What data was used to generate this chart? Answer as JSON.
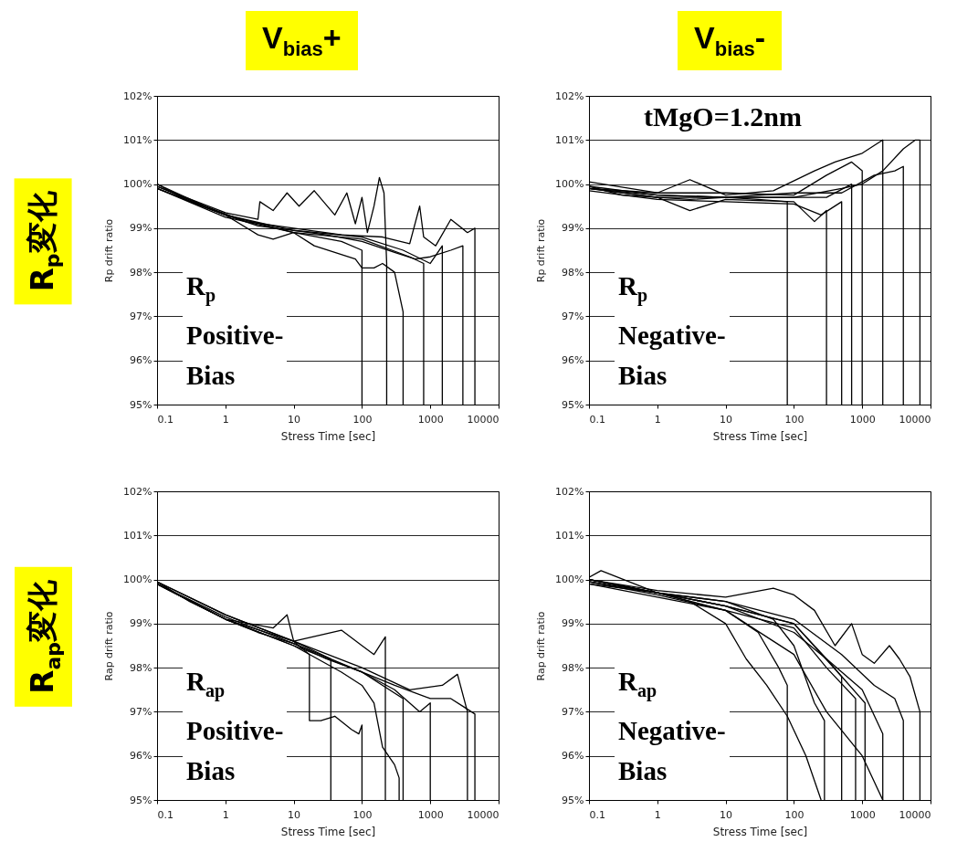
{
  "chart_data": [
    {
      "type": "line",
      "title": "V$_{bias}$+",
      "subtitle": "R$_{p}$変化",
      "xlabel": "Stress Time [sec]",
      "ylabel": "Rp drift ratio",
      "annotations": [
        "R$_{p}$",
        "Positive-",
        "Bias"
      ],
      "log": "x",
      "xlim": [
        0.1,
        10000
      ],
      "xticks": [
        0.1,
        1,
        10,
        100,
        1000,
        10000
      ],
      "ylim": [
        95,
        102
      ],
      "yticks": [
        {
          "value": 95,
          "label": "95%"
        },
        {
          "value": 96,
          "label": "96%"
        },
        {
          "value": 97,
          "label": "97%"
        },
        {
          "value": 98,
          "label": "98%"
        },
        {
          "value": 99,
          "label": "99%"
        },
        {
          "value": 100,
          "label": "100%"
        },
        {
          "value": 101,
          "label": "101%"
        },
        {
          "value": 102,
          "label": "102%"
        }
      ],
      "grid": "y",
      "line_style": "solid",
      "series": [
        {
          "color": "#000000",
          "x": [
            0.1,
            0.3,
            1,
            3,
            10,
            30,
            100,
            300,
            600,
            1000,
            2000,
            3000,
            3000
          ],
          "values": [
            100,
            99.6,
            99.3,
            99.05,
            98.95,
            98.85,
            98.7,
            98.45,
            98.3,
            98.35,
            98.5,
            98.6,
            95
          ]
        },
        {
          "color": "#000000",
          "x": [
            0.1,
            1,
            3,
            3.2,
            5,
            8,
            12,
            20,
            40,
            60,
            80,
            100,
            120,
            150,
            180,
            210,
            230,
            230
          ],
          "values": [
            99.95,
            99.35,
            99.2,
            99.6,
            99.4,
            99.8,
            99.5,
            99.85,
            99.3,
            99.8,
            99.1,
            99.7,
            98.9,
            99.5,
            100.15,
            99.8,
            98.2,
            95
          ]
        },
        {
          "color": "#000000",
          "x": [
            0.1,
            1,
            3,
            5,
            10,
            20,
            40,
            80,
            100,
            150,
            200,
            300,
            400,
            400
          ],
          "values": [
            99.9,
            99.3,
            98.85,
            98.75,
            98.9,
            98.6,
            98.45,
            98.3,
            98.1,
            98.1,
            98.2,
            98,
            97.1,
            95
          ]
        },
        {
          "color": "#000000",
          "x": [
            0.1,
            0.5,
            2,
            10,
            50,
            200,
            500,
            700,
            800,
            1200,
            2000,
            3500,
            4500,
            4500
          ],
          "values": [
            100,
            99.5,
            99.15,
            99,
            98.85,
            98.8,
            98.65,
            99.5,
            98.8,
            98.6,
            99.2,
            98.9,
            99,
            95
          ]
        },
        {
          "color": "#000000",
          "x": [
            0.1,
            1,
            10,
            50,
            100,
            100
          ],
          "values": [
            99.9,
            99.25,
            98.9,
            98.7,
            98.5,
            95
          ]
        },
        {
          "color": "#000000",
          "x": [
            0.1,
            1,
            10,
            100,
            400,
            1000,
            1500,
            1500
          ],
          "values": [
            99.95,
            99.3,
            98.95,
            98.8,
            98.5,
            98.2,
            98.6,
            95
          ]
        },
        {
          "color": "#000000",
          "x": [
            0.1,
            1,
            10,
            100,
            500,
            800,
            800
          ],
          "values": [
            99.9,
            99.3,
            98.9,
            98.75,
            98.35,
            98.2,
            95
          ]
        }
      ]
    },
    {
      "type": "line",
      "title": "V$_{bias}$-",
      "subtitle": "tMgO=1.2nm",
      "xlabel": "Stress Time [sec]",
      "ylabel": "Rp drift ratio",
      "annotations": [
        "R$_{p}$",
        "Negative-",
        "Bias"
      ],
      "log": "x",
      "xlim": [
        0.1,
        10000
      ],
      "xticks": [
        0.1,
        1,
        10,
        100,
        1000,
        10000
      ],
      "ylim": [
        95,
        102
      ],
      "yticks": [
        {
          "value": 95,
          "label": "95%"
        },
        {
          "value": 96,
          "label": "96%"
        },
        {
          "value": 97,
          "label": "97%"
        },
        {
          "value": 98,
          "label": "98%"
        },
        {
          "value": 99,
          "label": "99%"
        },
        {
          "value": 100,
          "label": "100%"
        },
        {
          "value": 101,
          "label": "101%"
        },
        {
          "value": 102,
          "label": "102%"
        }
      ],
      "grid": "y",
      "line_style": "solid",
      "series": [
        {
          "color": "#000000",
          "x": [
            0.1,
            0.3,
            1,
            3,
            10,
            30,
            80,
            80
          ],
          "values": [
            99.95,
            99.75,
            99.7,
            99.65,
            99.7,
            99.65,
            99.6,
            95
          ]
        },
        {
          "color": "#000000",
          "x": [
            0.1,
            1,
            3,
            10,
            50,
            200,
            400,
            1000,
            2000,
            2000
          ],
          "values": [
            100.05,
            99.8,
            100.1,
            99.75,
            99.85,
            100.3,
            100.5,
            100.7,
            101,
            95
          ]
        },
        {
          "color": "#000000",
          "x": [
            0.1,
            1,
            3,
            10,
            100,
            200,
            300,
            300
          ],
          "values": [
            99.9,
            99.7,
            99.4,
            99.65,
            99.6,
            99.15,
            99.4,
            95
          ]
        },
        {
          "color": "#000000",
          "x": [
            0.1,
            1,
            10,
            100,
            500,
            1000,
            2000,
            4000,
            6000,
            7000,
            7000
          ],
          "values": [
            99.9,
            99.75,
            99.7,
            99.7,
            99.9,
            100,
            100.3,
            100.8,
            101,
            101,
            95
          ]
        },
        {
          "color": "#000000",
          "x": [
            0.1,
            1,
            10,
            100,
            250,
            500,
            500
          ],
          "values": [
            99.85,
            99.65,
            99.6,
            99.55,
            99.3,
            99.6,
            95
          ]
        },
        {
          "color": "#000000",
          "x": [
            0.1,
            1,
            10,
            100,
            300,
            700,
            1000,
            1000
          ],
          "values": [
            99.9,
            99.8,
            99.8,
            99.75,
            100.2,
            100.5,
            100.3,
            95
          ]
        },
        {
          "color": "#000000",
          "x": [
            0.1,
            1,
            10,
            100,
            500,
            1500,
            3000,
            4000,
            4000
          ],
          "values": [
            99.9,
            99.7,
            99.7,
            99.8,
            99.8,
            100.2,
            100.3,
            100.4,
            95
          ]
        },
        {
          "color": "#000000",
          "x": [
            0.1,
            1,
            10,
            100,
            300,
            700,
            700
          ],
          "values": [
            99.95,
            99.75,
            99.7,
            99.7,
            99.7,
            100,
            95
          ]
        }
      ]
    },
    {
      "type": "line",
      "subtitle": "R$_{ap}$変化",
      "xlabel": "Stress Time [sec]",
      "ylabel": "Rap drift ratio",
      "annotations": [
        "R$_{ap}$",
        "Positive-",
        "Bias"
      ],
      "log": "x",
      "xlim": [
        0.1,
        10000
      ],
      "xticks": [
        0.1,
        1,
        10,
        100,
        1000,
        10000
      ],
      "ylim": [
        95,
        102
      ],
      "yticks": [
        {
          "value": 95,
          "label": "95%"
        },
        {
          "value": 96,
          "label": "96%"
        },
        {
          "value": 97,
          "label": "97%"
        },
        {
          "value": 98,
          "label": "98%"
        },
        {
          "value": 99,
          "label": "99%"
        },
        {
          "value": 100,
          "label": "100%"
        },
        {
          "value": 101,
          "label": "101%"
        },
        {
          "value": 102,
          "label": "102%"
        }
      ],
      "grid": "y",
      "line_style": "solid",
      "series": [
        {
          "color": "#000000",
          "x": [
            0.1,
            0.3,
            1,
            3,
            10,
            30,
            100,
            300,
            1000,
            2000,
            4500,
            4500
          ],
          "values": [
            99.95,
            99.5,
            99.1,
            98.8,
            98.55,
            98.2,
            97.9,
            97.6,
            97.3,
            97.3,
            96.95,
            95
          ]
        },
        {
          "color": "#000000",
          "x": [
            0.1,
            1,
            5,
            8,
            10,
            17,
            17,
            25,
            40,
            70,
            90,
            100,
            100
          ],
          "values": [
            99.9,
            99.1,
            98.9,
            99.2,
            98.6,
            98.3,
            96.8,
            96.8,
            96.9,
            96.6,
            96.5,
            96.7,
            95
          ]
        },
        {
          "color": "#000000",
          "x": [
            0.1,
            1,
            10,
            35,
            35
          ],
          "values": [
            99.9,
            99.1,
            98.6,
            98.2,
            95
          ]
        },
        {
          "color": "#000000",
          "x": [
            0.1,
            1,
            10,
            50,
            100,
            150,
            200,
            220,
            220
          ],
          "values": [
            99.95,
            99.2,
            98.6,
            98.85,
            98.5,
            98.3,
            98.6,
            98.7,
            95
          ]
        },
        {
          "color": "#000000",
          "x": [
            0.1,
            1,
            10,
            50,
            100,
            150,
            200,
            300,
            350,
            350
          ],
          "values": [
            99.9,
            99.1,
            98.5,
            97.9,
            97.6,
            97.2,
            96.2,
            95.8,
            95.5,
            95
          ]
        },
        {
          "color": "#000000",
          "x": [
            0.1,
            1,
            10,
            100,
            300,
            700,
            1000,
            1000
          ],
          "values": [
            99.9,
            99.15,
            98.55,
            97.9,
            97.5,
            97,
            97.2,
            95
          ]
        },
        {
          "color": "#000000",
          "x": [
            0.1,
            1,
            10,
            100,
            500,
            1500,
            2500,
            3500,
            3500
          ],
          "values": [
            99.95,
            99.2,
            98.6,
            98,
            97.5,
            97.6,
            97.85,
            97,
            95
          ]
        },
        {
          "color": "#000000",
          "x": [
            0.1,
            1,
            10,
            100,
            400,
            400
          ],
          "values": [
            99.9,
            99.1,
            98.5,
            97.9,
            97.3,
            95
          ]
        }
      ]
    },
    {
      "type": "line",
      "xlabel": "Stress Time [sec]",
      "ylabel": "Rap drift ratio",
      "annotations": [
        "R$_{ap}$",
        "Negative-",
        "Bias"
      ],
      "log": "x",
      "xlim": [
        0.1,
        10000
      ],
      "xticks": [
        0.1,
        1,
        10,
        100,
        1000,
        10000
      ],
      "ylim": [
        95,
        102
      ],
      "yticks": [
        {
          "value": 95,
          "label": "95%"
        },
        {
          "value": 96,
          "label": "96%"
        },
        {
          "value": 97,
          "label": "97%"
        },
        {
          "value": 98,
          "label": "98%"
        },
        {
          "value": 99,
          "label": "99%"
        },
        {
          "value": 100,
          "label": "100%"
        },
        {
          "value": 101,
          "label": "101%"
        },
        {
          "value": 102,
          "label": "102%"
        }
      ],
      "grid": "y",
      "line_style": "solid",
      "series": [
        {
          "color": "#000000",
          "x": [
            0.1,
            0.15,
            1,
            3,
            10,
            20,
            40,
            80,
            150,
            250
          ],
          "values": [
            100.05,
            100.2,
            99.7,
            99.5,
            99,
            98.2,
            97.6,
            96.9,
            96,
            95
          ]
        },
        {
          "color": "#000000",
          "x": [
            0.1,
            1,
            10,
            30,
            60,
            80,
            80
          ],
          "values": [
            99.9,
            99.7,
            99.3,
            98.8,
            98,
            97.6,
            95
          ]
        },
        {
          "color": "#000000",
          "x": [
            0.1,
            1,
            10,
            50,
            100,
            200,
            280,
            280
          ],
          "values": [
            100,
            99.7,
            99.5,
            99.1,
            98.5,
            97.2,
            96.8,
            95
          ]
        },
        {
          "color": "#000000",
          "x": [
            0.1,
            1,
            10,
            50,
            100,
            200,
            400,
            700,
            1000,
            1500,
            2500,
            3500,
            5000,
            7000,
            7000
          ],
          "values": [
            100,
            99.75,
            99.6,
            99.8,
            99.65,
            99.3,
            98.5,
            99,
            98.3,
            98.1,
            98.5,
            98.2,
            97.8,
            97,
            95
          ]
        },
        {
          "color": "#000000",
          "x": [
            0.1,
            1,
            10,
            100,
            300,
            500,
            500
          ],
          "values": [
            99.95,
            99.7,
            99.4,
            98.8,
            98.2,
            97.8,
            95
          ]
        },
        {
          "color": "#000000",
          "x": [
            0.1,
            1,
            10,
            100,
            300,
            800,
            800
          ],
          "values": [
            99.9,
            99.6,
            99.3,
            98.9,
            98,
            97.3,
            95
          ]
        },
        {
          "color": "#000000",
          "x": [
            0.1,
            1,
            10,
            100,
            300,
            1000,
            2000,
            2000
          ],
          "values": [
            100,
            99.7,
            99.4,
            99,
            98.2,
            97.5,
            96.5,
            95
          ]
        },
        {
          "color": "#000000",
          "x": [
            0.1,
            1,
            10,
            100,
            500,
            1500,
            3000,
            4000,
            4000
          ],
          "values": [
            100,
            99.7,
            99.5,
            99.1,
            98.3,
            97.6,
            97.3,
            96.8,
            95
          ]
        },
        {
          "color": "#000000",
          "x": [
            0.1,
            1,
            10,
            100,
            300,
            1000,
            2000
          ],
          "values": [
            99.95,
            99.65,
            99.3,
            98.3,
            97,
            96,
            95
          ]
        },
        {
          "color": "#000000",
          "x": [
            0.1,
            1,
            10,
            100,
            500,
            1100,
            1100
          ],
          "values": [
            100,
            99.7,
            99.4,
            99,
            97.8,
            97.2,
            95
          ]
        }
      ]
    }
  ]
}
